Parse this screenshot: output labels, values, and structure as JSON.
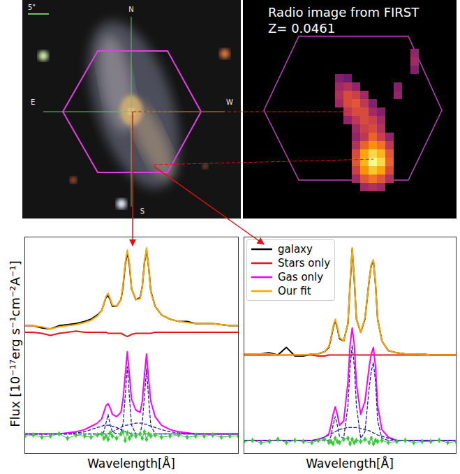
{
  "chart_data": [
    {
      "type": "image",
      "annotations": [
        "N",
        "E",
        "W",
        "S",
        "5\""
      ]
    },
    {
      "type": "heatmap",
      "title": "Radio image from FIRST",
      "subtitle": "Z= 0.0461",
      "zlim": [
        0,
        100
      ],
      "tick_labels": false,
      "cells": [
        [
          0,
          0,
          0,
          0,
          0,
          0,
          0,
          0,
          0,
          0,
          20
        ],
        [
          0,
          0,
          0,
          0,
          0,
          0,
          0,
          0,
          0,
          0,
          25
        ],
        [
          0,
          0,
          0,
          0,
          0,
          0,
          0,
          0,
          0,
          0,
          15
        ],
        [
          0,
          15,
          10,
          0,
          0,
          0,
          0,
          0,
          0,
          0,
          0
        ],
        [
          0,
          25,
          30,
          20,
          0,
          0,
          0,
          0,
          15,
          0,
          0
        ],
        [
          0,
          30,
          45,
          40,
          25,
          0,
          0,
          0,
          20,
          0,
          0
        ],
        [
          0,
          25,
          45,
          50,
          35,
          15,
          0,
          0,
          0,
          0,
          0
        ],
        [
          0,
          0,
          35,
          45,
          45,
          25,
          15,
          0,
          0,
          0,
          0
        ],
        [
          0,
          0,
          20,
          35,
          45,
          40,
          25,
          0,
          0,
          0,
          0
        ],
        [
          0,
          0,
          0,
          25,
          40,
          45,
          30,
          0,
          0,
          0,
          0
        ],
        [
          0,
          0,
          0,
          20,
          35,
          55,
          40,
          20,
          0,
          0,
          0
        ],
        [
          0,
          0,
          0,
          30,
          55,
          70,
          60,
          35,
          0,
          0,
          0
        ],
        [
          0,
          0,
          0,
          45,
          75,
          90,
          80,
          50,
          0,
          0,
          0
        ],
        [
          0,
          0,
          0,
          50,
          80,
          100,
          90,
          55,
          0,
          0,
          0
        ],
        [
          0,
          0,
          0,
          40,
          70,
          85,
          75,
          45,
          0,
          0,
          0
        ],
        [
          0,
          0,
          0,
          25,
          50,
          60,
          50,
          30,
          0,
          0,
          0
        ],
        [
          0,
          0,
          0,
          0,
          25,
          30,
          25,
          0,
          0,
          0,
          0
        ]
      ]
    },
    {
      "type": "line",
      "xlabel": "Wavelength[Å]",
      "ylabel": "Flux [10⁻¹⁷erg s⁻¹cm⁻²A⁻¹]",
      "xlim": [
        0,
        100
      ],
      "ylim": [
        0,
        100
      ],
      "tick_labels": false,
      "x": [
        0,
        4,
        8,
        12,
        16,
        20,
        24,
        28,
        31,
        34,
        36,
        37,
        38,
        39,
        40,
        41,
        43,
        45,
        46,
        47,
        48,
        49,
        50,
        52,
        54,
        55,
        56,
        57,
        58,
        59,
        61,
        64,
        68,
        72,
        76,
        80,
        84,
        88,
        92,
        96,
        100
      ],
      "series": [
        {
          "color": "#000000",
          "values": [
            59,
            59,
            58,
            57.5,
            59,
            59.5,
            60,
            61,
            62,
            64,
            66,
            69,
            72,
            73,
            71,
            68,
            68,
            71,
            77,
            87,
            93,
            87,
            76,
            71,
            72,
            77,
            88,
            94,
            86,
            75,
            68,
            64,
            62,
            61,
            61,
            60,
            60,
            60,
            59.5,
            59,
            59
          ]
        },
        {
          "color": "#e8141a",
          "values": [
            56,
            56,
            55.5,
            54.5,
            55.5,
            56,
            56.5,
            56,
            56,
            56,
            56,
            56,
            56,
            55.5,
            55.5,
            55.5,
            55.5,
            55.5,
            55,
            54.5,
            54,
            54.5,
            55,
            55.5,
            55.5,
            55.5,
            55.5,
            55.5,
            55.5,
            55.5,
            56,
            56,
            56,
            56,
            56,
            56,
            56,
            56,
            56,
            56,
            56
          ]
        },
        {
          "color": "#ff00ff",
          "values": [
            9,
            9,
            9,
            9,
            9,
            9.5,
            10,
            11,
            12.5,
            14,
            16,
            19,
            22,
            23,
            21,
            18,
            17,
            19,
            25,
            36,
            47,
            36,
            25,
            20,
            19,
            24,
            36,
            46,
            34,
            24,
            17,
            13,
            11,
            10,
            9.5,
            9,
            9,
            9,
            9,
            9,
            9
          ]
        },
        {
          "color": "#ffa500",
          "values": [
            59,
            59,
            58.5,
            57.5,
            58.5,
            59,
            59.5,
            60.5,
            61.5,
            63.5,
            66,
            69,
            72.5,
            74,
            71.5,
            68.5,
            68,
            71,
            78,
            88,
            94,
            88,
            76,
            71,
            71.5,
            77,
            88.5,
            95,
            86,
            74.5,
            68,
            64,
            62,
            61,
            60.5,
            60,
            60,
            60,
            59.5,
            59,
            59
          ]
        },
        {
          "color": "#1f1fb4",
          "line_style": "dashed",
          "values": [
            9,
            9,
            9,
            9,
            9,
            9,
            9,
            9,
            9,
            9,
            9,
            10,
            14,
            18,
            13,
            10,
            9,
            9,
            14,
            26,
            40,
            26,
            13,
            9,
            9,
            14,
            26,
            39,
            25,
            13,
            9,
            9,
            9,
            9,
            9,
            9,
            9,
            9,
            9,
            9,
            9
          ]
        },
        {
          "color": "#1f1fb4",
          "line_style": "dashed",
          "values": [
            9,
            9,
            9,
            9,
            9,
            9,
            9.5,
            10,
            11,
            12,
            12.5,
            13,
            13,
            13,
            13,
            12.5,
            12,
            11,
            10.5,
            10,
            9.5,
            9.5,
            9,
            9,
            9,
            9,
            9,
            9,
            9,
            9,
            9,
            9,
            9,
            9,
            9,
            9,
            9,
            9,
            9,
            9,
            9
          ]
        },
        {
          "color": "#1f1fb4",
          "line_style": "dashed",
          "values": [
            9,
            9,
            9,
            9,
            9,
            9,
            9,
            9,
            9,
            9,
            9,
            9,
            9,
            9,
            9.5,
            10,
            11,
            12,
            12.5,
            13,
            13,
            13.5,
            13.5,
            14,
            14,
            14,
            13.5,
            13.5,
            13,
            12.5,
            12,
            11,
            10,
            9.5,
            9,
            9,
            9,
            9,
            9,
            9,
            9
          ]
        },
        {
          "color": "#33cc33",
          "marker": "diamond",
          "values": [
            8,
            8.5,
            7.5,
            8,
            9,
            7,
            8.5,
            8,
            7.5,
            8.5,
            9,
            7,
            8,
            6.5,
            9.5,
            8,
            7,
            9,
            10,
            6,
            9.5,
            7,
            8.5,
            8,
            9,
            7,
            10,
            6.5,
            9,
            8,
            8.5,
            7.5,
            8,
            8.5,
            7.5,
            8,
            8,
            8.5,
            7.5,
            8,
            8
          ]
        }
      ]
    },
    {
      "type": "line",
      "xlabel": "Wavelength[Å]",
      "xlim": [
        0,
        100
      ],
      "ylim": [
        0,
        100
      ],
      "tick_labels": false,
      "legend": "upper left",
      "x": [
        0,
        4,
        8,
        12,
        16,
        20,
        24,
        28,
        32,
        35,
        38,
        40,
        41,
        42,
        43,
        44,
        45,
        47,
        49,
        50,
        51,
        52,
        53,
        55,
        57,
        59,
        60,
        61,
        62,
        63,
        65,
        68,
        72,
        76,
        80,
        84,
        88,
        92,
        96,
        100
      ],
      "series": [
        {
          "name": "galaxy",
          "color": "#000000",
          "values": [
            46,
            46,
            46,
            46.5,
            45.5,
            49,
            45,
            45,
            46,
            46,
            47,
            49,
            53,
            58,
            61.5,
            58,
            53,
            52,
            60,
            78,
            94.5,
            80,
            62,
            56,
            62,
            80,
            87,
            89,
            78,
            62,
            52,
            47.5,
            46.5,
            46,
            46,
            46,
            45.5,
            45.5,
            45.5,
            45.5
          ]
        },
        {
          "name": "Stars only",
          "color": "#e8141a",
          "values": [
            45.5,
            45.5,
            45.5,
            45.5,
            45.5,
            45.5,
            45.5,
            45.5,
            45.5,
            45,
            45,
            45.5,
            45.5,
            45.5,
            45.5,
            45.5,
            45.5,
            45.5,
            45.5,
            45.5,
            45.5,
            45.5,
            45.5,
            45.5,
            45.5,
            45.5,
            45.5,
            45.5,
            45.5,
            45.5,
            45.5,
            45.5,
            45.5,
            45.5,
            45.5,
            45.5,
            45.5,
            45.5,
            45.5,
            45.5
          ]
        },
        {
          "name": "Gas only",
          "color": "#ff00ff",
          "values": [
            6,
            6,
            6,
            6,
            6,
            6,
            6,
            6,
            6,
            6.5,
            7.5,
            9,
            13,
            18,
            21.5,
            18,
            13,
            15,
            33,
            50,
            58,
            50,
            32,
            18,
            24,
            40,
            46,
            49,
            40,
            22,
            11,
            7.5,
            6,
            6,
            6,
            6,
            6,
            6,
            6,
            6
          ]
        },
        {
          "name": "Our fit",
          "color": "#ffa500",
          "values": [
            46,
            46,
            46,
            46,
            45.5,
            45.5,
            45.5,
            45.5,
            46,
            46,
            47,
            49.5,
            53.5,
            58.5,
            62,
            58.5,
            53.5,
            52,
            60,
            79,
            95,
            80.5,
            62,
            56,
            62.5,
            80,
            87.5,
            89.5,
            78,
            62,
            52,
            47.5,
            46.5,
            46,
            46,
            46,
            45.5,
            45.5,
            45.5,
            45.5
          ]
        },
        {
          "color": "#1f1fb4",
          "line_style": "dashed",
          "values": [
            6,
            6,
            6,
            6,
            6,
            6,
            6,
            6,
            6,
            6,
            6,
            6,
            8,
            13,
            17,
            13,
            8,
            7,
            22,
            40,
            50,
            40,
            22,
            7,
            10,
            30,
            38,
            42,
            33,
            15,
            7,
            6,
            6,
            6,
            6,
            6,
            6,
            6,
            6,
            6
          ]
        },
        {
          "color": "#1f1fb4",
          "line_style": "dashed",
          "values": [
            6,
            6,
            6,
            6,
            6,
            6,
            6,
            6,
            6,
            6.5,
            7.5,
            8.5,
            9,
            9.5,
            10,
            10.5,
            11,
            11.5,
            12,
            12,
            12,
            12,
            12,
            11.5,
            11,
            10.5,
            10,
            9.5,
            9,
            8.5,
            8,
            7,
            6,
            6,
            6,
            6,
            6,
            6,
            6,
            6
          ]
        },
        {
          "color": "#33cc33",
          "marker": "diamond",
          "values": [
            5.5,
            6,
            5,
            5.5,
            6.5,
            5,
            6,
            5.5,
            5,
            6,
            6.5,
            5,
            5.5,
            4.5,
            7,
            5.5,
            5,
            6.5,
            7,
            4.5,
            6.5,
            5,
            6,
            5.5,
            6.5,
            5,
            7,
            4.5,
            6,
            5.5,
            6,
            5,
            5.5,
            6,
            5,
            5.5,
            5.5,
            6,
            5,
            5.5
          ]
        }
      ]
    }
  ]
}
